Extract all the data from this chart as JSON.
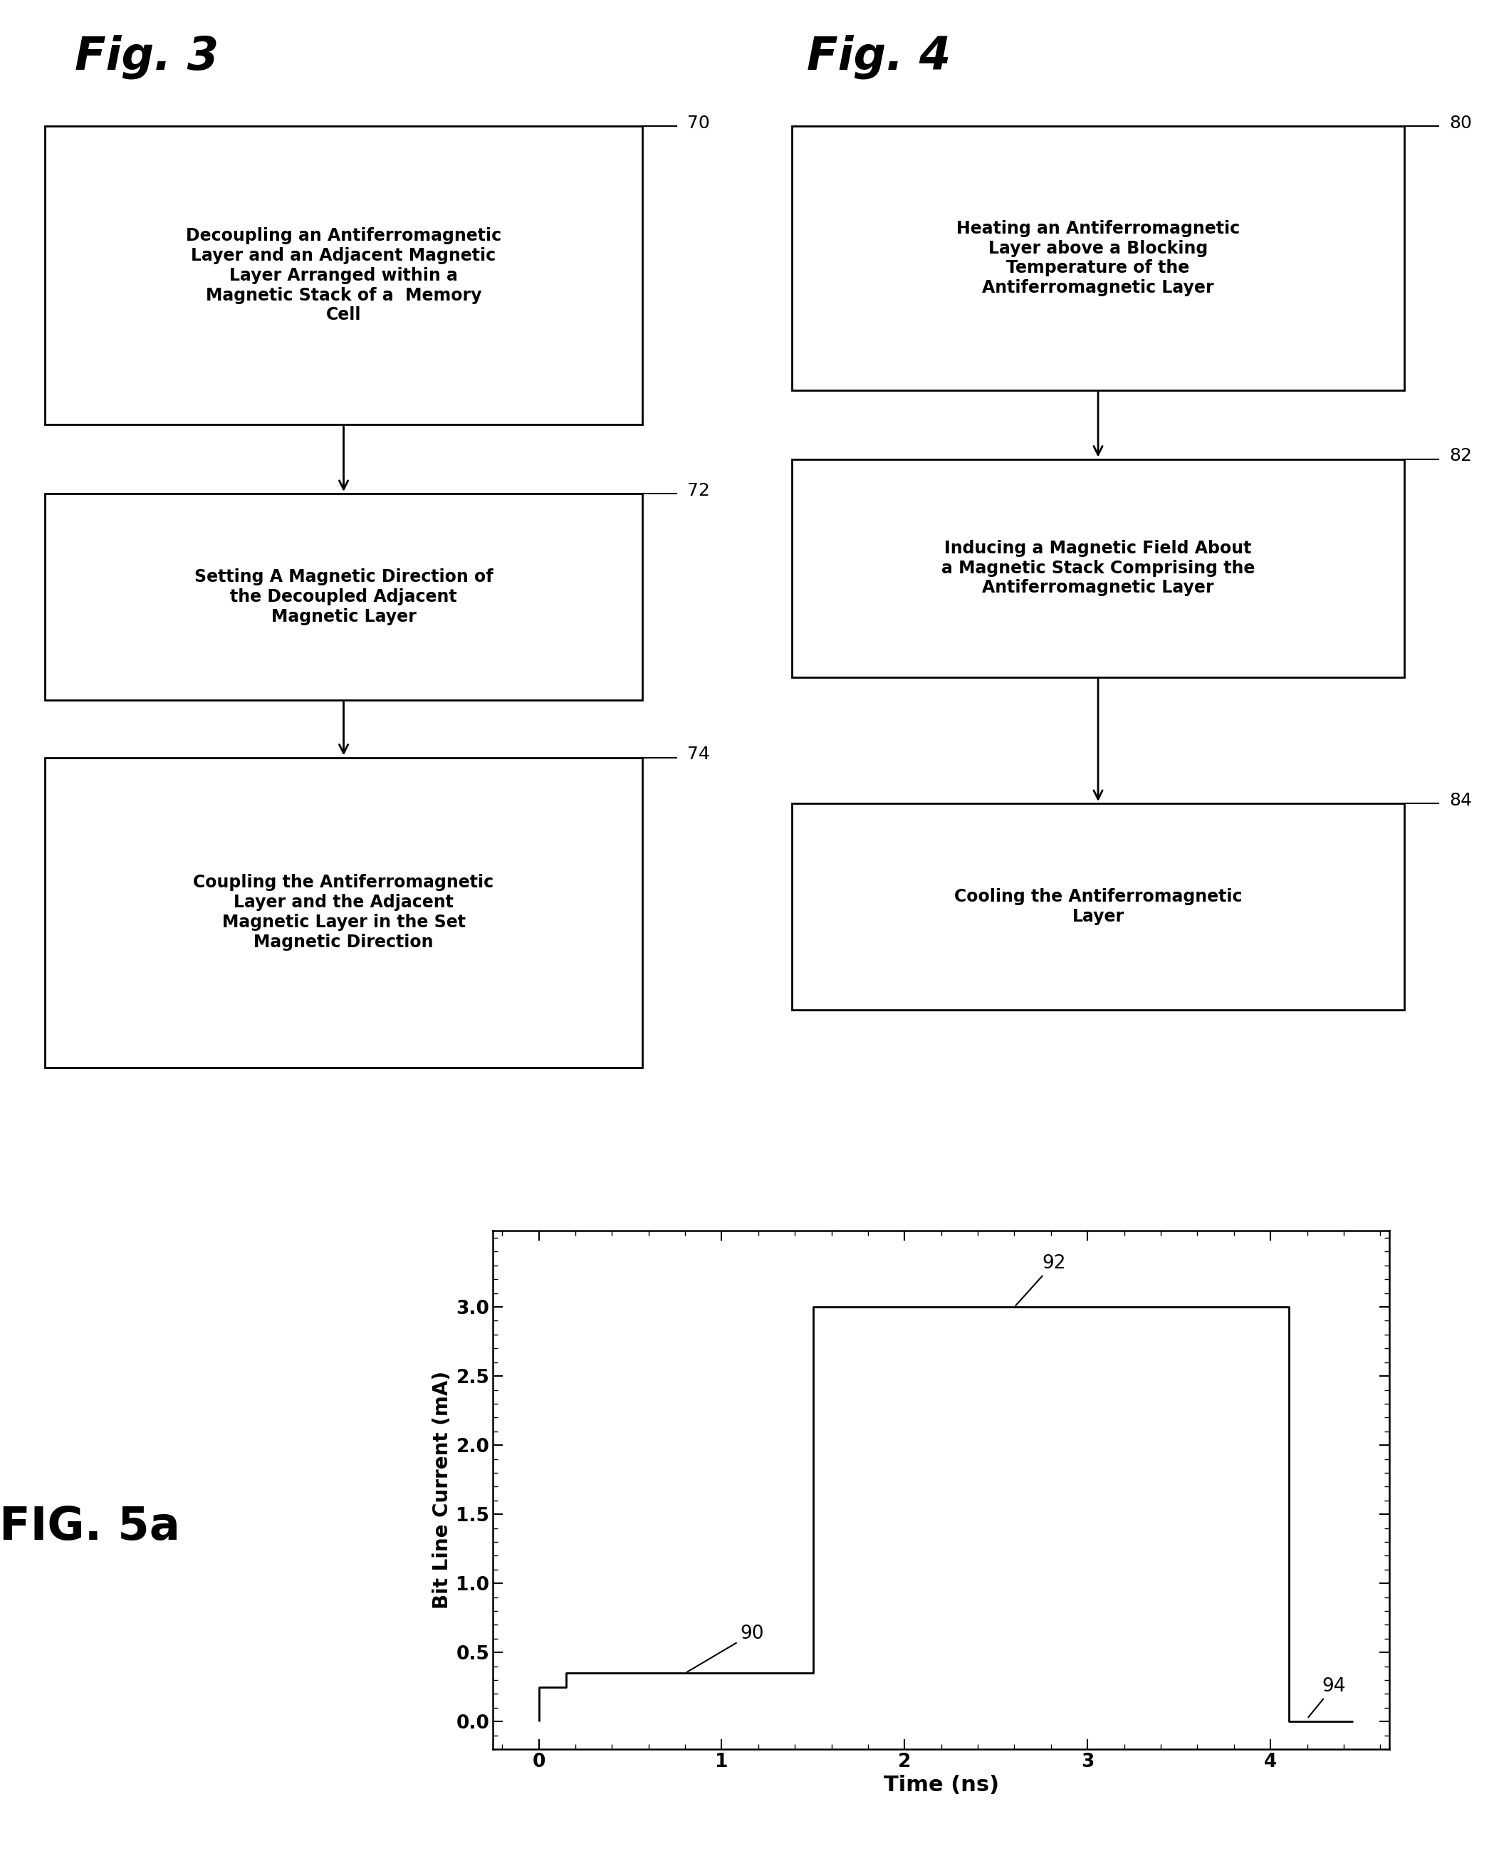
{
  "fig3_title": "Fig. 3",
  "fig4_title": "Fig. 4",
  "fig5a_title": "FIG. 5a",
  "fig3_boxes": [
    {
      "text": "Decoupling an Antiferromagnetic\nLayer and an Adjacent Magnetic\nLayer Arranged within a\nMagnetic Stack of a  Memory\nCell",
      "label": "70"
    },
    {
      "text": "Setting A Magnetic Direction of\nthe Decoupled Adjacent\nMagnetic Layer",
      "label": "72"
    },
    {
      "text": "Coupling the Antiferromagnetic\nLayer and the Adjacent\nMagnetic Layer in the Set\nMagnetic Direction",
      "label": "74"
    }
  ],
  "fig4_boxes": [
    {
      "text": "Heating an Antiferromagnetic\nLayer above a Blocking\nTemperature of the\nAntiferromagnetic Layer",
      "label": "80"
    },
    {
      "text": "Inducing a Magnetic Field About\na Magnetic Stack Comprising the\nAntiferromagnetic Layer",
      "label": "82"
    },
    {
      "text": "Cooling the Antiferromagnetic\nLayer",
      "label": "84"
    }
  ],
  "graph_xlabel": "Time (ns)",
  "graph_ylabel": "Bit Line Current (mA)",
  "graph_yticks": [
    0,
    0.5,
    1,
    1.5,
    2,
    2.5,
    3.0
  ],
  "graph_xticks": [
    0,
    1,
    2,
    3,
    4
  ],
  "signal_x": [
    0.0,
    0.0,
    0.15,
    0.15,
    1.5,
    1.5,
    2.0,
    2.0,
    4.1,
    4.1,
    4.45,
    4.45
  ],
  "signal_y": [
    0.0,
    0.25,
    0.25,
    0.35,
    0.35,
    3.0,
    3.0,
    3.0,
    3.0,
    0.0,
    0.0,
    0.0
  ],
  "xlim_min": -0.25,
  "xlim_max": 4.65,
  "ylim_min": -0.2,
  "ylim_max": 3.55,
  "bg_color": "#ffffff",
  "box_color": "#ffffff",
  "box_edge_color": "#000000",
  "text_color": "#000000",
  "line_color": "#000000"
}
